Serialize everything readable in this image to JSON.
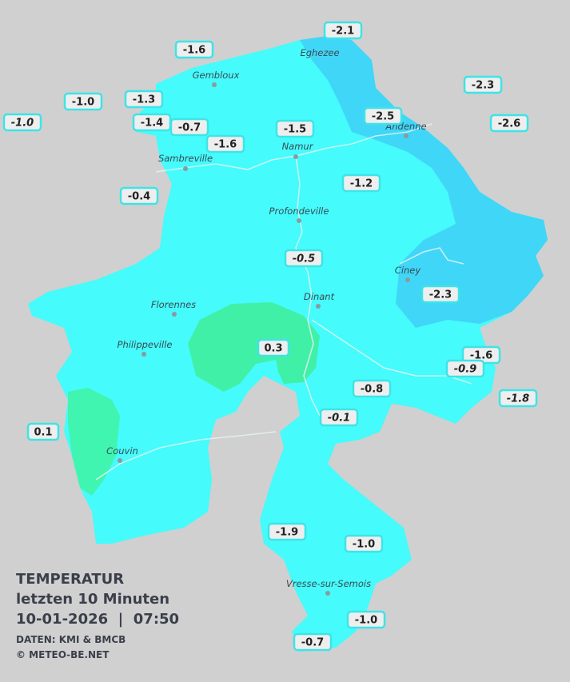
{
  "title": {
    "line1": "TEMPERATUR",
    "line2": "letzten 10 Minuten",
    "line3": "10-01-2026  |  07:50",
    "source": "DATEN: KMI & BMCB",
    "copyright": "© METEO-BE.NET"
  },
  "cities": [
    "Eghezee",
    "Gembloux",
    "Andenne",
    "Namur",
    "Sambreville",
    "Profondeville",
    "Ciney",
    "Dinant",
    "Florennes",
    "Philippeville",
    "Couvin",
    "Vresse-sur-Semois"
  ],
  "stations": [
    {
      "label": "-2.1",
      "italic": false
    },
    {
      "label": "-1.6",
      "italic": false
    },
    {
      "label": "-2.3",
      "italic": false
    },
    {
      "label": "-1.0",
      "italic": false
    },
    {
      "label": "-1.3",
      "italic": false
    },
    {
      "label": "-2.5",
      "italic": false
    },
    {
      "label": "-2.6",
      "italic": false
    },
    {
      "label": "-1.0",
      "italic": true
    },
    {
      "label": "-1.4",
      "italic": false
    },
    {
      "label": "-0.7",
      "italic": false
    },
    {
      "label": "-1.5",
      "italic": false
    },
    {
      "label": "-1.6",
      "italic": false
    },
    {
      "label": "-1.2",
      "italic": false
    },
    {
      "label": "-0.4",
      "italic": false
    },
    {
      "label": "-0.5",
      "italic": true
    },
    {
      "label": "-2.3",
      "italic": false
    },
    {
      "label": "0.3",
      "italic": false
    },
    {
      "label": "-1.6",
      "italic": false
    },
    {
      "label": "-0.9",
      "italic": true
    },
    {
      "label": "-0.8",
      "italic": false
    },
    {
      "label": "-1.8",
      "italic": true
    },
    {
      "label": "-0.1",
      "italic": true
    },
    {
      "label": "0.1",
      "italic": false
    },
    {
      "label": "-1.9",
      "italic": false
    },
    {
      "label": "-1.0",
      "italic": false
    },
    {
      "label": "-1.0",
      "italic": false
    },
    {
      "label": "-0.7",
      "italic": false
    }
  ]
}
